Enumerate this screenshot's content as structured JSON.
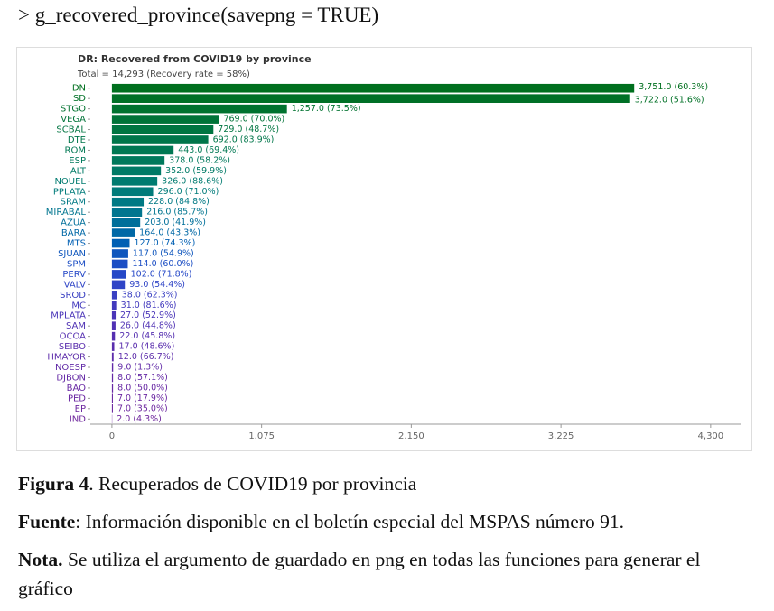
{
  "code": "> g_recovered_province(savepng = TRUE)",
  "chart_data": {
    "type": "hbar",
    "title": "DR: Recovered from COVID19 by province",
    "subtitle": "Total = 14,293 (Recovery rate = 58%)",
    "categories": [
      "DN",
      "SD",
      "STGO",
      "VEGA",
      "SCBAL",
      "DTE",
      "ROM",
      "ESP",
      "ALT",
      "NOUEL",
      "PPLATA",
      "SRAM",
      "MIRABAL",
      "AZUA",
      "BARA",
      "MTS",
      "SJUAN",
      "SPM",
      "PERV",
      "VALV",
      "SROD",
      "MC",
      "MPLATA",
      "SAM",
      "OCOA",
      "SEIBO",
      "HMAYOR",
      "NOESP",
      "DJBON",
      "BAO",
      "PED",
      "EP",
      "IND"
    ],
    "values": [
      3751,
      3722,
      1257,
      769,
      729,
      692,
      443,
      378,
      352,
      326,
      296,
      228,
      216,
      203,
      164,
      127,
      117,
      114,
      102,
      93,
      38,
      31,
      27,
      26,
      22,
      17,
      12,
      9,
      8,
      8,
      7,
      7,
      2
    ],
    "value_labels": [
      "3,751.0 (60.3%)",
      "3,722.0 (51.6%)",
      "1,257.0 (73.5%)",
      "769.0 (70.0%)",
      "729.0 (48.7%)",
      "692.0 (83.9%)",
      "443.0 (69.4%)",
      "378.0 (58.2%)",
      "352.0 (59.9%)",
      "326.0 (88.6%)",
      "296.0 (71.0%)",
      "228.0 (84.8%)",
      "216.0 (85.7%)",
      "203.0 (41.9%)",
      "164.0 (43.3%)",
      "127.0 (74.3%)",
      "117.0 (54.9%)",
      "114.0 (60.0%)",
      "102.0 (71.8%)",
      "93.0 (54.4%)",
      "38.0 (62.3%)",
      "31.0 (81.6%)",
      "27.0 (52.9%)",
      "26.0 (44.8%)",
      "22.0 (45.8%)",
      "17.0 (48.6%)",
      "12.0 (66.7%)",
      "9.0 (1.3%)",
      "8.0 (57.1%)",
      "8.0 (50.0%)",
      "7.0 (17.9%)",
      "7.0 (35.0%)",
      "2.0 (4.3%)"
    ],
    "colors": [
      "#006f1e",
      "#007026",
      "#00722f",
      "#007338",
      "#007541",
      "#00764a",
      "#007853",
      "#00795c",
      "#007a66",
      "#007b70",
      "#007b7a",
      "#007984",
      "#00758f",
      "#006f9a",
      "#0068a6",
      "#005fb3",
      "#0f56bd",
      "#1c4ec4",
      "#2548c7",
      "#2f44c6",
      "#3a40c2",
      "#4239bd",
      "#4a35b8",
      "#5032b4",
      "#552fb0",
      "#592dad",
      "#5d2caa",
      "#612aa7",
      "#6429a5",
      "#6728a3",
      "#6a27a1",
      "#6c279f",
      "#6e269d"
    ],
    "xlim": [
      -155,
      4515
    ],
    "xticks": [
      0,
      {
        "value": 1075,
        "label": "1.075"
      },
      {
        "value": 2150,
        "label": "2.150"
      },
      {
        "value": 3225,
        "label": "3.225"
      },
      {
        "value": 4300,
        "label": "4,300"
      }
    ]
  },
  "caption": {
    "figure": {
      "label": "Figura 4",
      "text": ". Recuperados de COVID19 por provincia"
    },
    "source": {
      "label": "Fuente",
      "text": ": Información disponible en el boletín especial del MSPAS número 91."
    },
    "note": {
      "label": "Nota.",
      "text": " Se utiliza el argumento de guardado en png en todas las funciones para generar el gráfico"
    }
  }
}
